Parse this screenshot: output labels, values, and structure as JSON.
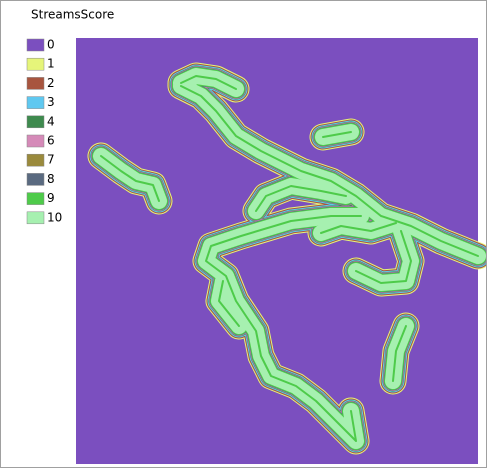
{
  "legend": {
    "title": "StreamsScore",
    "items": [
      {
        "label": "0",
        "color": "#7b4fbf"
      },
      {
        "label": "1",
        "color": "#e6f57a"
      },
      {
        "label": "2",
        "color": "#a8553f"
      },
      {
        "label": "3",
        "color": "#5fc8f0"
      },
      {
        "label": "4",
        "color": "#3e8a4e"
      },
      {
        "label": "6",
        "color": "#d58ab8"
      },
      {
        "label": "7",
        "color": "#9a8a3c"
      },
      {
        "label": "8",
        "color": "#5a6a80"
      },
      {
        "label": "9",
        "color": "#4ecb4a"
      },
      {
        "label": "10",
        "color": "#a6f0b0"
      }
    ]
  }
}
